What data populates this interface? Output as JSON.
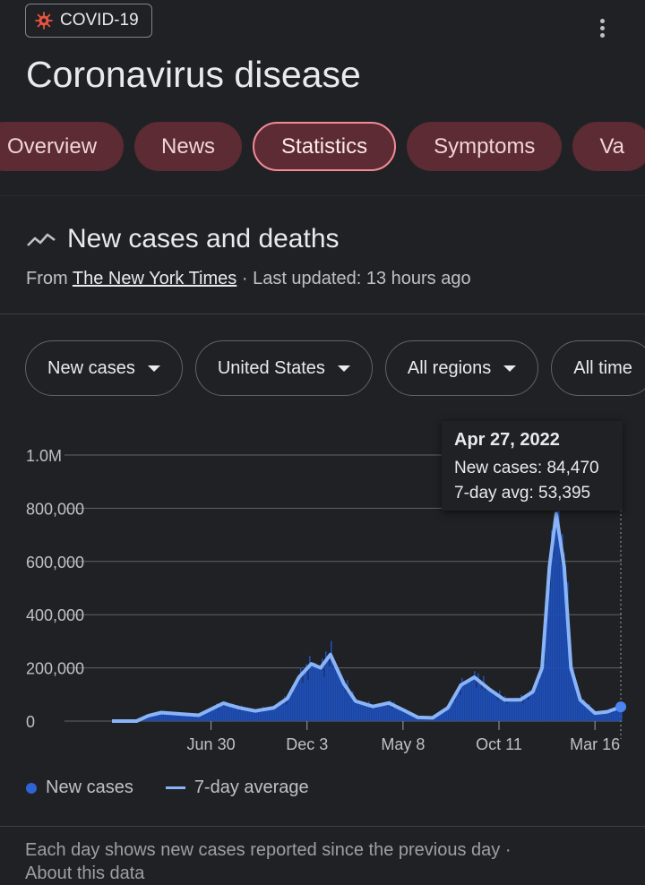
{
  "topic_chip": {
    "icon": "virus-icon",
    "label": "COVID-19"
  },
  "title": "Coronavirus disease",
  "tabs": [
    "Overview",
    "News",
    "Statistics",
    "Symptoms",
    "Va"
  ],
  "active_tab": "Statistics",
  "card": {
    "title": "New cases and deaths",
    "source_prefix": "From",
    "source_link": "The New York Times",
    "updated": "· Last updated: 13 hours ago"
  },
  "filters": [
    "New cases",
    "United States",
    "All regions",
    "All time"
  ],
  "tooltip": {
    "date": "Apr 27, 2022",
    "cases": "New cases: 84,470",
    "avg": "7-day avg: 53,395"
  },
  "legend": {
    "series1": "New cases",
    "series2": "7-day average"
  },
  "footer": {
    "note": "Each day shows new cases reported since the previous day",
    "sep": "·",
    "link": "About this data"
  },
  "colors": {
    "bar": "#1e4fb8",
    "line": "#8ab4f8",
    "tab_bg": "#5c2b33",
    "tab_active_border": "#f28b96"
  },
  "chart_data": {
    "type": "area",
    "ylim": [
      0,
      1000000
    ],
    "y_ticks": [
      "0",
      "200,000",
      "400,000",
      "600,000",
      "800,000",
      "1.0M"
    ],
    "y_tick_values": [
      0,
      200000,
      400000,
      600000,
      800000,
      1000000
    ],
    "x_ticks": [
      "Jun 30",
      "Dec 3",
      "May 8",
      "Oct 11",
      "Mar 16"
    ],
    "x_tick_dates": [
      "2020-06-30",
      "2020-12-03",
      "2021-05-08",
      "2021-10-11",
      "2022-03-16"
    ],
    "series": [
      {
        "name": "7-day average",
        "x": [
          "2020-01-21",
          "2020-03-01",
          "2020-03-20",
          "2020-04-10",
          "2020-05-10",
          "2020-06-10",
          "2020-07-20",
          "2020-08-15",
          "2020-09-10",
          "2020-10-10",
          "2020-11-01",
          "2020-11-20",
          "2020-12-10",
          "2020-12-25",
          "2021-01-10",
          "2021-02-01",
          "2021-02-20",
          "2021-03-20",
          "2021-04-15",
          "2021-05-10",
          "2021-06-01",
          "2021-06-25",
          "2021-07-20",
          "2021-08-10",
          "2021-09-01",
          "2021-09-25",
          "2021-10-20",
          "2021-11-15",
          "2021-12-05",
          "2021-12-20",
          "2022-01-01",
          "2022-01-12",
          "2022-01-25",
          "2022-02-05",
          "2022-02-20",
          "2022-03-16",
          "2022-04-05",
          "2022-04-27"
        ],
        "values": [
          0,
          0,
          20000,
          32000,
          27000,
          22000,
          67000,
          50000,
          38000,
          50000,
          85000,
          165000,
          215000,
          200000,
          250000,
          140000,
          75000,
          55000,
          68000,
          40000,
          14000,
          12000,
          50000,
          135000,
          165000,
          120000,
          80000,
          80000,
          110000,
          200000,
          580000,
          780000,
          580000,
          200000,
          80000,
          30000,
          35000,
          53395
        ]
      }
    ]
  }
}
